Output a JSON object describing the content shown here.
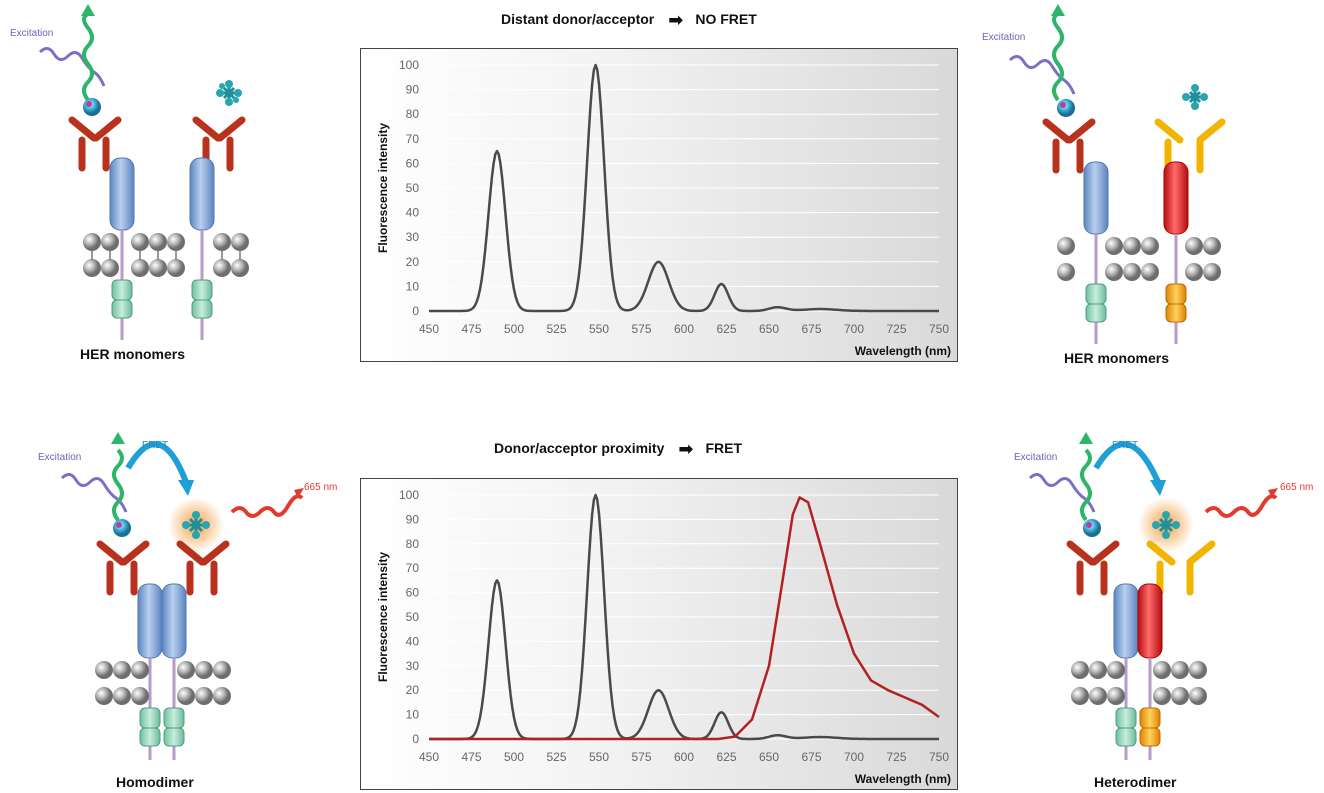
{
  "panels": {
    "top_left": {
      "caption": "HER monomers",
      "excitation": "Excitation"
    },
    "top_right": {
      "caption": "HER monomers",
      "excitation": "Excitation"
    },
    "bottom_left": {
      "caption": "Homodimer",
      "excitation": "Excitation",
      "fret": "FRET",
      "emission": "665 nm"
    },
    "bottom_right": {
      "caption": "Heterodimer",
      "excitation": "Excitation",
      "fret": "FRET",
      "emission": "665 nm"
    }
  },
  "charts": {
    "top": {
      "title_left": "Distant donor/acceptor",
      "title_right": "NO FRET"
    },
    "bottom": {
      "title_left": "Donor/acceptor proximity",
      "title_right": "FRET"
    }
  },
  "colors": {
    "donor_trace": "#4a4a4a",
    "acceptor_trace": "#b22222",
    "her_blue": "#7ea6d8",
    "her_red": "#e02020",
    "her_yellow": "#f5b800",
    "antibody": "#b8321e"
  },
  "chart_data": [
    {
      "type": "line",
      "title": "Distant donor/acceptor NO FRET",
      "xlabel": "Wavelength (nm)",
      "ylabel": "Fluorescence intensity",
      "xlim": [
        450,
        750
      ],
      "ylim": [
        0,
        100
      ],
      "xticks": [
        450,
        475,
        500,
        525,
        550,
        575,
        600,
        625,
        650,
        675,
        700,
        725,
        750
      ],
      "yticks": [
        0,
        10,
        20,
        30,
        40,
        50,
        60,
        70,
        80,
        90,
        100
      ],
      "grid": true,
      "series": [
        {
          "color": "#4a4a4a",
          "peaks": [
            [
              490,
              65,
              5
            ],
            [
              548,
              100,
              5
            ],
            [
              585,
              20,
              6
            ],
            [
              622,
              11,
              4
            ],
            [
              655,
              1.5,
              5
            ],
            [
              680,
              0.8,
              10
            ]
          ]
        }
      ]
    },
    {
      "type": "line",
      "title": "Donor/acceptor proximity FRET",
      "xlabel": "Wavelength (nm)",
      "ylabel": "Fluorescence intensity",
      "xlim": [
        450,
        750
      ],
      "ylim": [
        0,
        100
      ],
      "xticks": [
        450,
        475,
        500,
        525,
        550,
        575,
        600,
        625,
        650,
        675,
        700,
        725,
        750
      ],
      "yticks": [
        0,
        10,
        20,
        30,
        40,
        50,
        60,
        70,
        80,
        90,
        100
      ],
      "grid": true,
      "series": [
        {
          "color": "#4a4a4a",
          "peaks": [
            [
              490,
              65,
              5
            ],
            [
              548,
              100,
              5
            ],
            [
              585,
              20,
              6
            ],
            [
              622,
              11,
              4
            ],
            [
              655,
              1.5,
              5
            ],
            [
              680,
              0.8,
              10
            ]
          ]
        },
        {
          "color": "#b22222",
          "points": [
            [
              450,
              0
            ],
            [
              620,
              0
            ],
            [
              630,
              1
            ],
            [
              640,
              8
            ],
            [
              650,
              30
            ],
            [
              658,
              65
            ],
            [
              664,
              92
            ],
            [
              668,
              99
            ],
            [
              673,
              97
            ],
            [
              680,
              80
            ],
            [
              690,
              55
            ],
            [
              700,
              35
            ],
            [
              710,
              24
            ],
            [
              720,
              20
            ],
            [
              730,
              17
            ],
            [
              740,
              14
            ],
            [
              750,
              9
            ]
          ]
        }
      ]
    }
  ]
}
